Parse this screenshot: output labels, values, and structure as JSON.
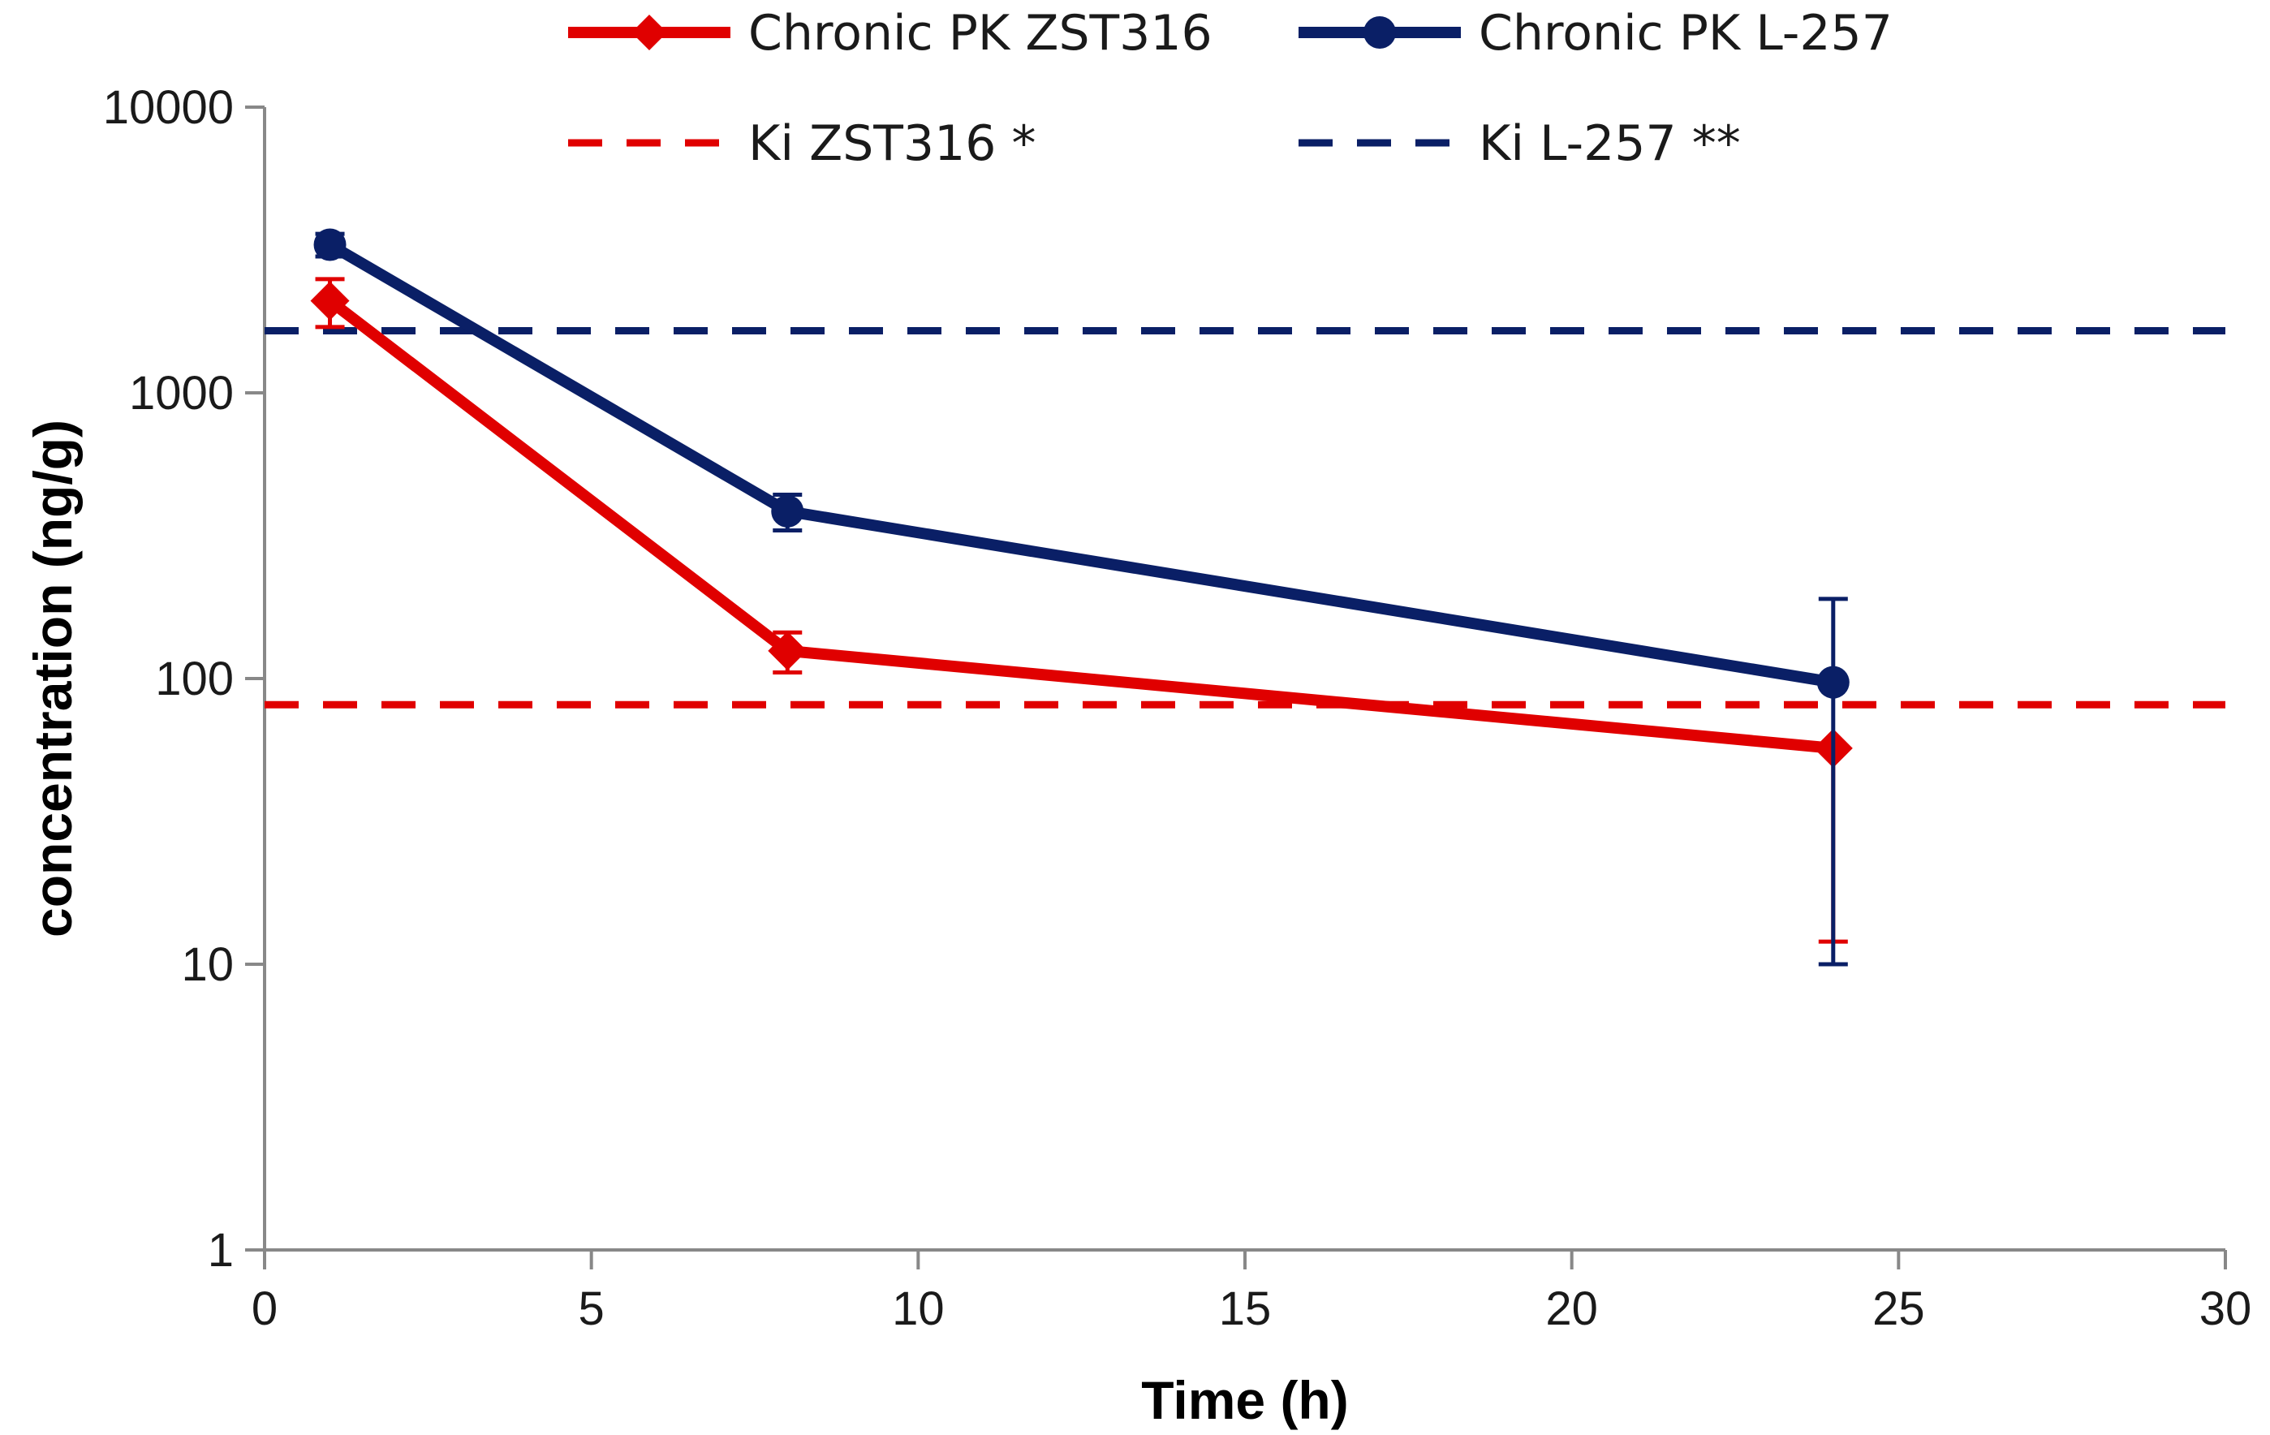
{
  "chart_data": {
    "type": "line",
    "title": "",
    "xlabel": "Time (h)",
    "ylabel": "concentration (ng/g)",
    "xlim": [
      0,
      30
    ],
    "ylim": [
      1,
      10000
    ],
    "yscale": "log",
    "x_ticks": [
      0,
      5,
      10,
      15,
      20,
      25,
      30
    ],
    "x_tick_labels": [
      "0",
      "5",
      "10",
      "15",
      "20",
      "25",
      "30"
    ],
    "y_ticks": [
      1,
      10,
      100,
      1000,
      10000
    ],
    "y_tick_labels": [
      "1",
      "10",
      "100",
      "1000",
      "10000"
    ],
    "grid": false,
    "legend_position": "top",
    "series": [
      {
        "name": "Chronic PK ZST316",
        "color": "#e00000",
        "marker": "diamond",
        "style": "solid",
        "x": [
          1,
          8,
          24
        ],
        "values": [
          2100,
          125,
          57
        ],
        "err_low": [
          1700,
          105,
          12
        ],
        "err_high": [
          2500,
          145,
          57
        ]
      },
      {
        "name": "Chronic PK L-257",
        "color": "#0a1f66",
        "marker": "circle",
        "style": "solid",
        "x": [
          1,
          8,
          24
        ],
        "values": [
          3300,
          385,
          97
        ],
        "err_low": [
          3000,
          330,
          10
        ],
        "err_high": [
          3600,
          440,
          190
        ]
      }
    ],
    "reference_lines": [
      {
        "name": "Ki ZST316 *",
        "color": "#e00000",
        "style": "dashed",
        "value": 81
      },
      {
        "name": "Ki L-257 **",
        "color": "#0a1f66",
        "style": "dashed",
        "value": 1650
      }
    ]
  }
}
